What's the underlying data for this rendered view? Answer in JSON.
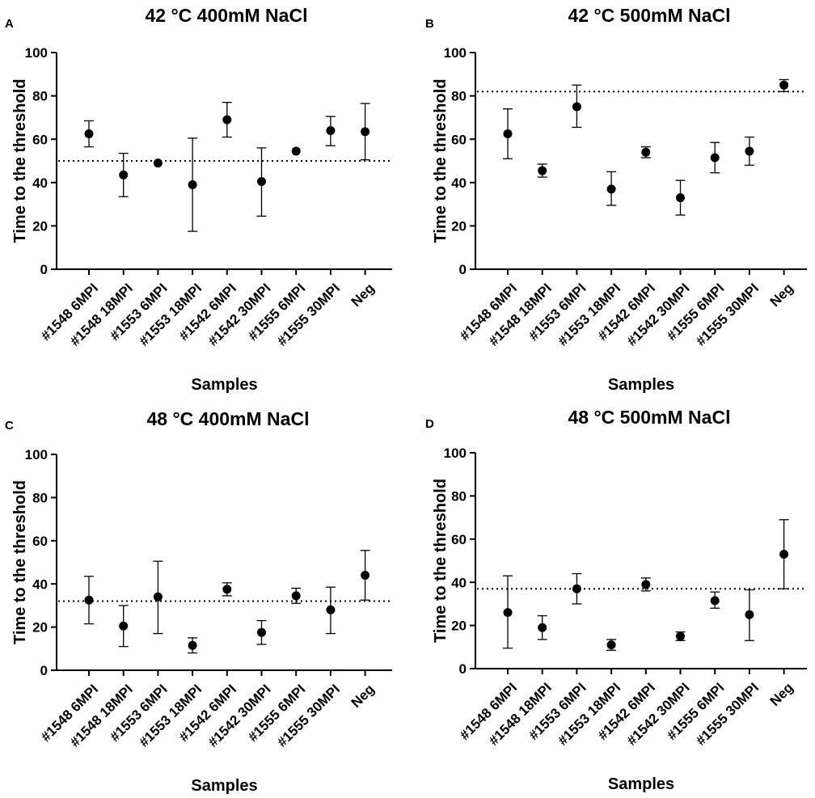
{
  "chart_data": [
    {
      "panel": "A",
      "type": "scatter",
      "title": "42 °C 400mM NaCl",
      "xlabel": "Samples",
      "ylabel": "Time to the threshold",
      "ylim": [
        0,
        100
      ],
      "yticks": [
        "0",
        "20",
        "40",
        "60",
        "80",
        "100"
      ],
      "categories": [
        "#1548 6MPI",
        "#1548 18MPI",
        "#1553 6MPI",
        "#1553 18MPI",
        "#1542 6MPI",
        "#1542 30MPI",
        "#1555 6MPI",
        "#1555 30MPI",
        "Neg"
      ],
      "values": [
        62.5,
        43.5,
        49,
        39,
        69,
        40.5,
        54.5,
        64,
        63.5
      ],
      "err_low": [
        56.5,
        33.5,
        49,
        17.5,
        61,
        24.5,
        54.5,
        57,
        50.5
      ],
      "err_high": [
        68.5,
        53.5,
        49,
        60.5,
        77,
        56,
        54.5,
        70.5,
        76.5
      ],
      "threshold": 50
    },
    {
      "panel": "B",
      "type": "scatter",
      "title": "42 °C 500mM NaCl",
      "xlabel": "Samples",
      "ylabel": "Time to the threshold",
      "ylim": [
        0,
        100
      ],
      "yticks": [
        "0",
        "20",
        "40",
        "60",
        "80",
        "100"
      ],
      "categories": [
        "#1548 6MPI",
        "#1548 18MPI",
        "#1553 6MPI",
        "#1553 18MPI",
        "#1542 6MPI",
        "#1542 30MPI",
        "#1555 6MPI",
        "#1555 30MPI",
        "Neg"
      ],
      "values": [
        62.5,
        45.5,
        75,
        37,
        54,
        33,
        51.5,
        54.5,
        85
      ],
      "err_low": [
        51,
        42.5,
        65.5,
        29.5,
        51.5,
        25,
        44.5,
        48,
        82
      ],
      "err_high": [
        74,
        48.5,
        85,
        45,
        56.5,
        41,
        58.5,
        61,
        87.5
      ],
      "threshold": 82
    },
    {
      "panel": "C",
      "type": "scatter",
      "title": "48 °C 400mM NaCl",
      "xlabel": "Samples",
      "ylabel": "Time to the threshold",
      "ylim": [
        0,
        100
      ],
      "yticks": [
        "0",
        "20",
        "40",
        "60",
        "80",
        "100"
      ],
      "categories": [
        "#1548 6MPI",
        "#1548 18MPI",
        "#1553 6MPI",
        "#1553 18MPI",
        "#1542 6MPI",
        "#1542 30MPI",
        "#1555 6MPI",
        "#1555 30MPI",
        "Neg"
      ],
      "values": [
        32.5,
        20.5,
        34,
        11.5,
        37.5,
        17.5,
        34.5,
        28,
        44
      ],
      "err_low": [
        21.5,
        11,
        17,
        8,
        34.5,
        12,
        31,
        17,
        32.5
      ],
      "err_high": [
        43.5,
        30,
        50.5,
        15,
        40.5,
        23,
        38,
        38.5,
        55.5
      ],
      "threshold": 32
    },
    {
      "panel": "D",
      "type": "scatter",
      "title": "48 °C 500mM NaCl",
      "xlabel": "Samples",
      "ylabel": "Time to the threshold",
      "ylim": [
        0,
        100
      ],
      "yticks": [
        "0",
        "20",
        "40",
        "60",
        "80",
        "100"
      ],
      "categories": [
        "#1548 6MPI",
        "#1548 18MPI",
        "#1553 6MPI",
        "#1553 18MPI",
        "#1542 6MPI",
        "#1542 30MPI",
        "#1555 6MPI",
        "#1555 30MPI",
        "Neg"
      ],
      "values": [
        26,
        19,
        37,
        11,
        39,
        15,
        31.5,
        25,
        53
      ],
      "err_low": [
        9.5,
        13.5,
        30,
        8.5,
        36,
        13,
        28,
        13,
        37
      ],
      "err_high": [
        43,
        24.5,
        44,
        13.5,
        42,
        17,
        35.5,
        36.5,
        69
      ],
      "threshold": 37
    }
  ],
  "colors": {
    "marker": "#000000",
    "axis": "#000000",
    "threshold_line": "#000000",
    "background": "#ffffff"
  }
}
